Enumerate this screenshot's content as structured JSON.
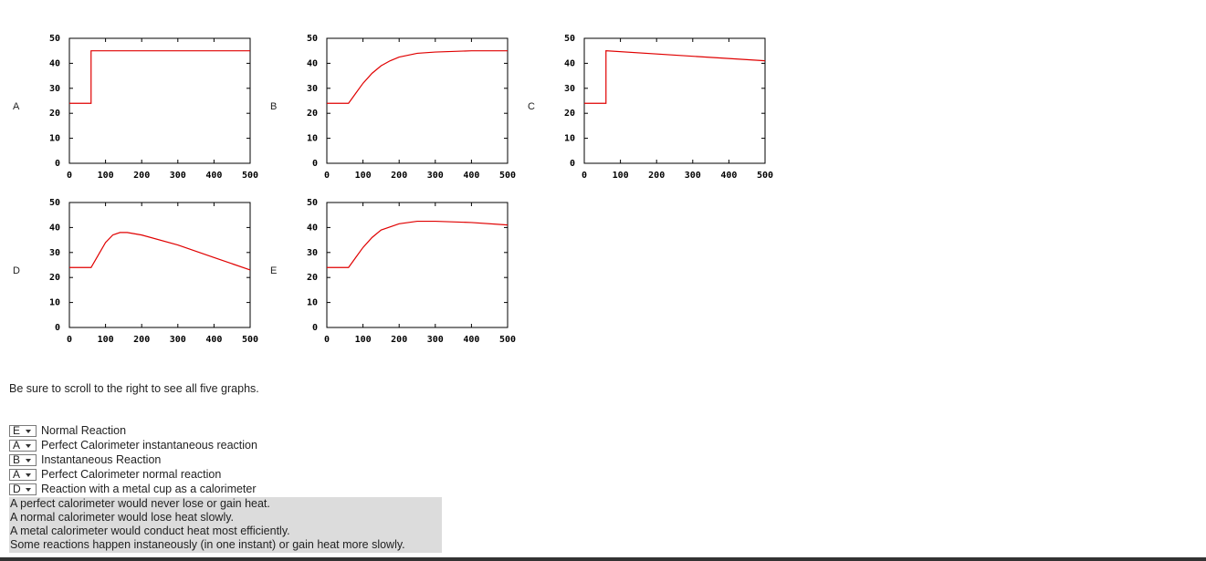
{
  "chart_data": [
    {
      "type": "line",
      "title": "A",
      "x": [
        0,
        60,
        60,
        500
      ],
      "values": [
        24,
        24,
        45,
        45
      ],
      "color": "#e00000",
      "xlim": [
        0,
        500
      ],
      "xticks": [
        0,
        100,
        200,
        300,
        400,
        500
      ],
      "ylim": [
        0,
        50
      ],
      "yticks": [
        0,
        10,
        20,
        30,
        40,
        50
      ]
    },
    {
      "type": "line",
      "title": "B",
      "x": [
        0,
        60,
        80,
        100,
        125,
        150,
        175,
        200,
        250,
        300,
        400,
        500
      ],
      "values": [
        24,
        24,
        28,
        32,
        36,
        39,
        41,
        42.5,
        44,
        44.5,
        45,
        45
      ],
      "color": "#e00000",
      "xlim": [
        0,
        500
      ],
      "xticks": [
        0,
        100,
        200,
        300,
        400,
        500
      ],
      "ylim": [
        0,
        50
      ],
      "yticks": [
        0,
        10,
        20,
        30,
        40,
        50
      ]
    },
    {
      "type": "line",
      "title": "C",
      "x": [
        0,
        60,
        60,
        500
      ],
      "values": [
        24,
        24,
        45,
        41
      ],
      "color": "#e00000",
      "xlim": [
        0,
        500
      ],
      "xticks": [
        0,
        100,
        200,
        300,
        400,
        500
      ],
      "ylim": [
        0,
        50
      ],
      "yticks": [
        0,
        10,
        20,
        30,
        40,
        50
      ]
    },
    {
      "type": "line",
      "title": "D",
      "x": [
        0,
        60,
        80,
        100,
        120,
        140,
        160,
        200,
        300,
        400,
        500
      ],
      "values": [
        24,
        24,
        29,
        34,
        37,
        38,
        38,
        37,
        33,
        28,
        23
      ],
      "color": "#e00000",
      "xlim": [
        0,
        500
      ],
      "xticks": [
        0,
        100,
        200,
        300,
        400,
        500
      ],
      "ylim": [
        0,
        50
      ],
      "yticks": [
        0,
        10,
        20,
        30,
        40,
        50
      ]
    },
    {
      "type": "line",
      "title": "E",
      "x": [
        0,
        60,
        80,
        100,
        125,
        150,
        200,
        250,
        300,
        400,
        500
      ],
      "values": [
        24,
        24,
        28,
        32,
        36,
        39,
        41.5,
        42.5,
        42.5,
        42,
        41
      ],
      "color": "#e00000",
      "xlim": [
        0,
        500
      ],
      "xticks": [
        0,
        100,
        200,
        300,
        400,
        500
      ],
      "ylim": [
        0,
        50
      ],
      "yticks": [
        0,
        10,
        20,
        30,
        40,
        50
      ]
    }
  ],
  "note": "Be sure to scroll to the right to see all five graphs.",
  "matches": [
    {
      "selected": "E",
      "label": "Normal Reaction"
    },
    {
      "selected": "A",
      "label": "Perfect Calorimeter instantaneous reaction"
    },
    {
      "selected": "B",
      "label": "Instantaneous Reaction"
    },
    {
      "selected": "A",
      "label": "Perfect Calorimeter normal reaction"
    },
    {
      "selected": "D",
      "label": "Reaction with a metal cup as a calorimeter"
    }
  ],
  "hints": [
    "A perfect calorimeter would never lose or gain heat.",
    "A normal calorimeter would lose heat slowly.",
    "A metal calorimeter would conduct heat most efficiently.",
    "Some reactions happen instaneously (in one instant) or gain heat more slowly."
  ]
}
